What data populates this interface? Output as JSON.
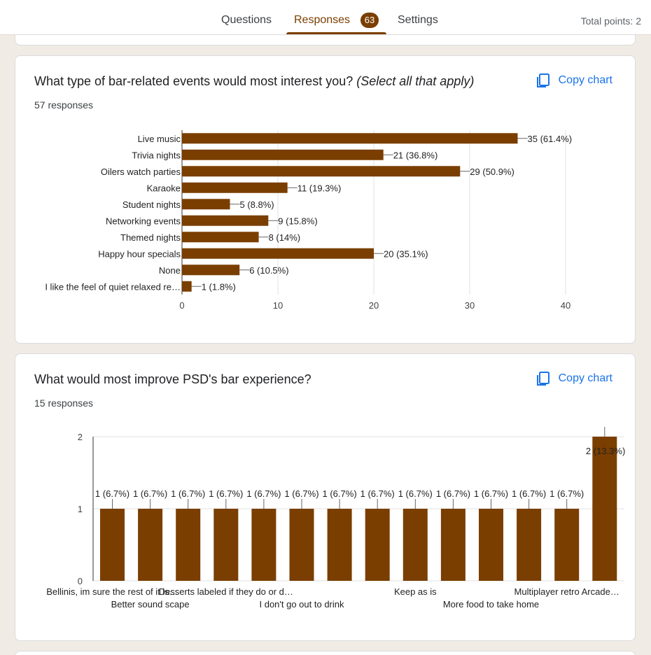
{
  "header": {
    "tabs": [
      {
        "label": "Questions"
      },
      {
        "label": "Responses",
        "badge": "63"
      },
      {
        "label": "Settings"
      }
    ],
    "total_points": "Total points: 2"
  },
  "colors": {
    "accent": "#7a3e00",
    "bar": "#7a3e00",
    "link": "#1a73e8"
  },
  "cards": [
    {
      "title": "What type of bar-related events would most interest you?",
      "title_note": "(Select all that apply)",
      "responses": "57 responses",
      "copy_label": "Copy chart",
      "copy_icon": "copy-icon"
    },
    {
      "title": "What would most improve PSD's bar experience?",
      "responses": "15 responses",
      "copy_label": "Copy chart",
      "copy_icon": "copy-icon"
    }
  ],
  "chart_data": [
    {
      "type": "bar",
      "orientation": "horizontal",
      "categories": [
        "Live music",
        "Trivia nights",
        "Oilers watch parties",
        "Karaoke",
        "Student nights",
        "Networking events",
        "Themed nights",
        "Happy hour specials",
        "None",
        "I like the feel of quiet relaxed re…"
      ],
      "values": [
        35,
        21,
        29,
        11,
        5,
        9,
        8,
        20,
        6,
        1
      ],
      "labels": [
        "35 (61.4%)",
        "21 (36.8%)",
        "29 (50.9%)",
        "11 (19.3%)",
        "5 (8.8%)",
        "9 (15.8%)",
        "8 (14%)",
        "20 (35.1%)",
        "6 (10.5%)",
        "1 (1.8%)"
      ],
      "xlim": [
        0,
        40
      ],
      "xticks": [
        0,
        10,
        20,
        30,
        40
      ],
      "grid": true
    },
    {
      "type": "bar",
      "orientation": "vertical",
      "categories": [
        "Bellinis, im sure the rest of it is…",
        "Better sound scape",
        "",
        "Desserts labeled if they do or d…",
        "",
        "I don't go out to drink",
        "",
        "",
        "Keep as is",
        "",
        "More food to take home",
        "",
        "Multiplayer retro Arcade…",
        ""
      ],
      "values": [
        1,
        1,
        1,
        1,
        1,
        1,
        1,
        1,
        1,
        1,
        1,
        1,
        1,
        2
      ],
      "labels": [
        "1 (6.7%)",
        "1 (6.7%)",
        "1 (6.7%)",
        "1 (6.7%)",
        "1 (6.7%)",
        "1 (6.7%)",
        "1 (6.7%)",
        "1 (6.7%)",
        "1 (6.7%)",
        "1 (6.7%)",
        "1 (6.7%)",
        "1 (6.7%)",
        "1 (6.7%)",
        "2 (13.3%)"
      ],
      "ylim": [
        0,
        2
      ],
      "yticks": [
        0,
        1,
        2
      ],
      "grid": true
    }
  ]
}
